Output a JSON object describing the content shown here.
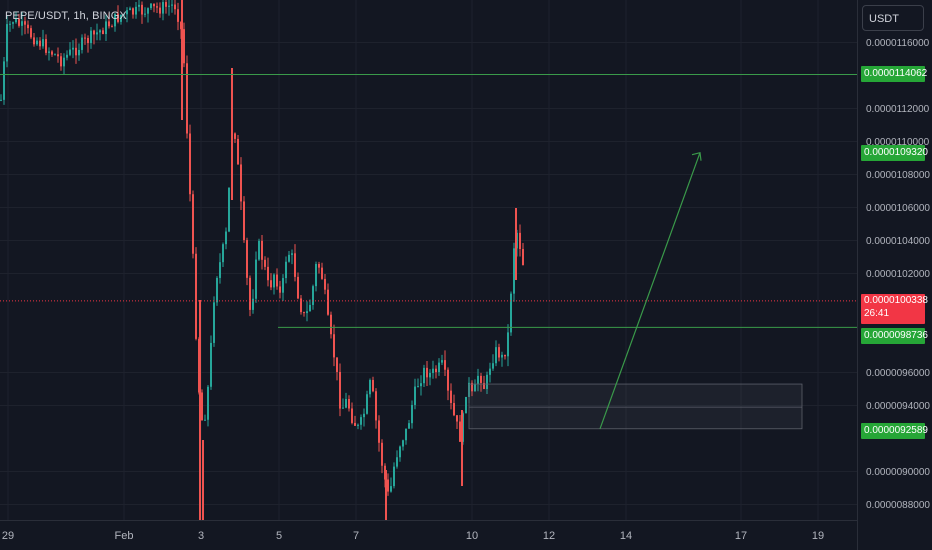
{
  "chart": {
    "symbol_label": "PEPE/USDT, 1h, BINGX",
    "currency_button": "USDT",
    "colors": {
      "background": "#131722",
      "grid": "#1e222d",
      "up": "#26a69a",
      "down": "#ef5350",
      "level_line": "#3a9a4a",
      "price_line": "#f23645"
    }
  },
  "price_labels": [
    {
      "key": "tag_level_top",
      "text": "0.0000114062",
      "value": 1.14062e-05
    },
    {
      "key": "tag_target",
      "text": "0.0000109320",
      "value": 1.0932e-05
    },
    {
      "key": "tag_last",
      "text": "0.0000100338",
      "countdown": "26:41",
      "value": 1.00338e-05
    },
    {
      "key": "tag_level_mid",
      "text": "0.0000098736",
      "value": 9.8736e-06
    },
    {
      "key": "tag_level_low",
      "text": "0.0000092589",
      "value": 9.2589e-06
    }
  ],
  "chart_data": {
    "type": "candlestick",
    "title": "PEPE/USDT, 1h, BINGX",
    "y_unit": "USDT",
    "y_ticks": [
      "0.0000116000",
      "0.0000112000",
      "0.0000110000",
      "0.0000108000",
      "0.0000106000",
      "0.0000104000",
      "0.0000102000",
      "0.0000096000",
      "0.0000094000",
      "0.0000090000",
      "0.0000088000"
    ],
    "x_ticks": [
      "29",
      "Feb",
      "3",
      "5",
      "7",
      "10",
      "12",
      "14",
      "17",
      "19"
    ],
    "horizontal_levels": [
      1.14062e-05,
      9.8736e-06,
      9.2589e-06
    ],
    "last_price": 1.00338e-05,
    "ylim": [
      8.7e-06,
      1.17e-05
    ],
    "grid": true,
    "annotations": [
      "rectangle zone ~0.0000092589–0.0000095300",
      "arrow from ~0.0000092589 up to ~0.0000109320"
    ]
  }
}
